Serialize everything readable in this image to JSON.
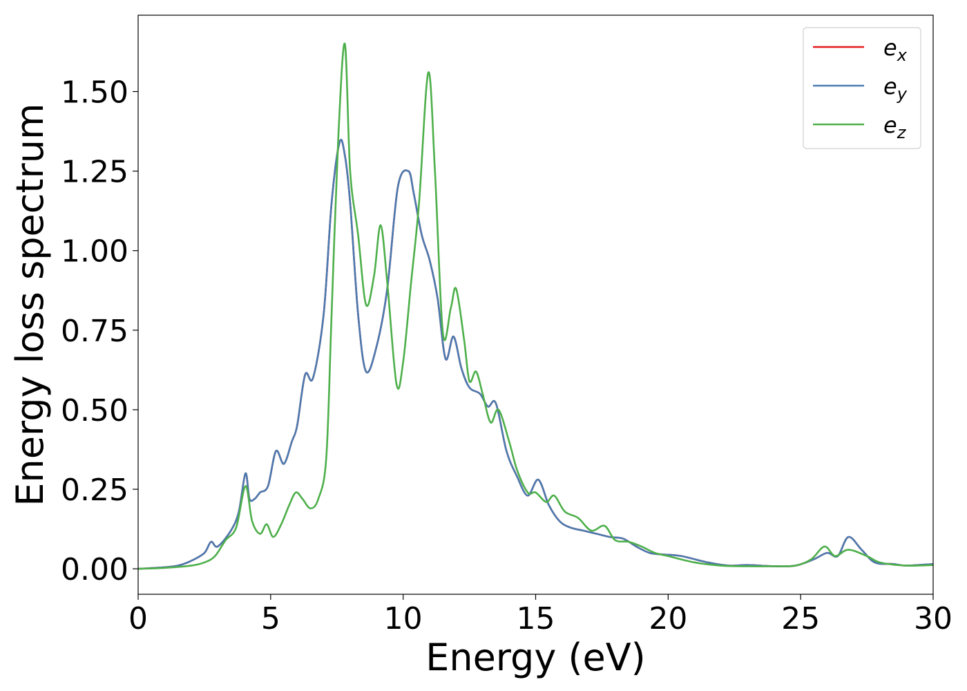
{
  "chart_data": {
    "type": "line",
    "title": "",
    "xlabel": "Energy (eV)",
    "ylabel": "Energy loss spectrum",
    "xlim": [
      0,
      30
    ],
    "ylim": [
      -0.08,
      1.74
    ],
    "xticks": [
      0,
      5,
      10,
      15,
      20,
      25,
      30
    ],
    "xtick_labels": [
      "0",
      "5",
      "10",
      "15",
      "20",
      "25",
      "30"
    ],
    "yticks": [
      0.0,
      0.25,
      0.5,
      0.75,
      1.0,
      1.25,
      1.5
    ],
    "ytick_labels": [
      "0.00",
      "0.25",
      "0.50",
      "0.75",
      "1.00",
      "1.25",
      "1.50"
    ],
    "grid": false,
    "legend_position": "top-right",
    "series": [
      {
        "name": "e",
        "subscript": "x",
        "color": "#e41a1c",
        "points": [
          [
            0,
            0.0
          ],
          [
            1,
            0.005
          ],
          [
            1.5,
            0.01
          ],
          [
            2,
            0.025
          ],
          [
            2.5,
            0.05
          ],
          [
            2.75,
            0.085
          ],
          [
            3,
            0.07
          ],
          [
            3.5,
            0.12
          ],
          [
            3.8,
            0.18
          ],
          [
            4.05,
            0.3
          ],
          [
            4.2,
            0.22
          ],
          [
            4.4,
            0.22
          ],
          [
            4.6,
            0.24
          ],
          [
            4.9,
            0.26
          ],
          [
            5.2,
            0.37
          ],
          [
            5.5,
            0.33
          ],
          [
            5.8,
            0.4
          ],
          [
            6.0,
            0.45
          ],
          [
            6.3,
            0.61
          ],
          [
            6.6,
            0.6
          ],
          [
            7.0,
            0.8
          ],
          [
            7.3,
            1.15
          ],
          [
            7.6,
            1.34
          ],
          [
            7.8,
            1.3
          ],
          [
            8.0,
            1.15
          ],
          [
            8.3,
            0.8
          ],
          [
            8.6,
            0.62
          ],
          [
            9.0,
            0.7
          ],
          [
            9.4,
            0.88
          ],
          [
            9.8,
            1.2
          ],
          [
            10.2,
            1.25
          ],
          [
            10.4,
            1.18
          ],
          [
            10.7,
            1.05
          ],
          [
            11.0,
            0.97
          ],
          [
            11.3,
            0.85
          ],
          [
            11.6,
            0.66
          ],
          [
            11.9,
            0.73
          ],
          [
            12.2,
            0.63
          ],
          [
            12.5,
            0.57
          ],
          [
            12.9,
            0.55
          ],
          [
            13.2,
            0.51
          ],
          [
            13.5,
            0.52
          ],
          [
            13.9,
            0.37
          ],
          [
            14.3,
            0.29
          ],
          [
            14.7,
            0.23
          ],
          [
            15.1,
            0.28
          ],
          [
            15.5,
            0.2
          ],
          [
            15.9,
            0.15
          ],
          [
            16.3,
            0.13
          ],
          [
            16.8,
            0.12
          ],
          [
            17.3,
            0.11
          ],
          [
            17.8,
            0.1
          ],
          [
            18.3,
            0.095
          ],
          [
            18.8,
            0.07
          ],
          [
            19.3,
            0.05
          ],
          [
            19.8,
            0.045
          ],
          [
            20.5,
            0.04
          ],
          [
            21.5,
            0.02
          ],
          [
            22.3,
            0.01
          ],
          [
            23.0,
            0.012
          ],
          [
            24.0,
            0.008
          ],
          [
            24.8,
            0.01
          ],
          [
            25.5,
            0.03
          ],
          [
            26.0,
            0.05
          ],
          [
            26.4,
            0.04
          ],
          [
            26.8,
            0.1
          ],
          [
            27.3,
            0.06
          ],
          [
            27.8,
            0.02
          ],
          [
            28.5,
            0.015
          ],
          [
            29.0,
            0.01
          ],
          [
            30.0,
            0.015
          ]
        ]
      },
      {
        "name": "e",
        "subscript": "y",
        "color": "#4a7ab0",
        "points": [
          [
            0,
            0.0
          ],
          [
            1,
            0.005
          ],
          [
            1.5,
            0.01
          ],
          [
            2,
            0.025
          ],
          [
            2.5,
            0.05
          ],
          [
            2.75,
            0.085
          ],
          [
            3,
            0.07
          ],
          [
            3.5,
            0.12
          ],
          [
            3.8,
            0.18
          ],
          [
            4.05,
            0.3
          ],
          [
            4.2,
            0.22
          ],
          [
            4.4,
            0.22
          ],
          [
            4.6,
            0.24
          ],
          [
            4.9,
            0.26
          ],
          [
            5.2,
            0.37
          ],
          [
            5.5,
            0.33
          ],
          [
            5.8,
            0.4
          ],
          [
            6.0,
            0.45
          ],
          [
            6.3,
            0.61
          ],
          [
            6.6,
            0.6
          ],
          [
            7.0,
            0.8
          ],
          [
            7.3,
            1.15
          ],
          [
            7.6,
            1.34
          ],
          [
            7.8,
            1.3
          ],
          [
            8.0,
            1.15
          ],
          [
            8.3,
            0.8
          ],
          [
            8.6,
            0.62
          ],
          [
            9.0,
            0.7
          ],
          [
            9.4,
            0.88
          ],
          [
            9.8,
            1.2
          ],
          [
            10.2,
            1.25
          ],
          [
            10.4,
            1.18
          ],
          [
            10.7,
            1.05
          ],
          [
            11.0,
            0.97
          ],
          [
            11.3,
            0.85
          ],
          [
            11.6,
            0.66
          ],
          [
            11.9,
            0.73
          ],
          [
            12.2,
            0.63
          ],
          [
            12.5,
            0.57
          ],
          [
            12.9,
            0.55
          ],
          [
            13.2,
            0.51
          ],
          [
            13.5,
            0.52
          ],
          [
            13.9,
            0.37
          ],
          [
            14.3,
            0.29
          ],
          [
            14.7,
            0.23
          ],
          [
            15.1,
            0.28
          ],
          [
            15.5,
            0.2
          ],
          [
            15.9,
            0.15
          ],
          [
            16.3,
            0.13
          ],
          [
            16.8,
            0.12
          ],
          [
            17.3,
            0.11
          ],
          [
            17.8,
            0.1
          ],
          [
            18.3,
            0.095
          ],
          [
            18.8,
            0.07
          ],
          [
            19.3,
            0.05
          ],
          [
            19.8,
            0.045
          ],
          [
            20.5,
            0.04
          ],
          [
            21.5,
            0.02
          ],
          [
            22.3,
            0.01
          ],
          [
            23.0,
            0.012
          ],
          [
            24.0,
            0.008
          ],
          [
            24.8,
            0.01
          ],
          [
            25.5,
            0.03
          ],
          [
            26.0,
            0.05
          ],
          [
            26.4,
            0.04
          ],
          [
            26.8,
            0.1
          ],
          [
            27.3,
            0.06
          ],
          [
            27.8,
            0.02
          ],
          [
            28.5,
            0.015
          ],
          [
            29.0,
            0.01
          ],
          [
            30.0,
            0.015
          ]
        ]
      },
      {
        "name": "e",
        "subscript": "z",
        "color": "#4daf4a",
        "points": [
          [
            0,
            0.0
          ],
          [
            1,
            0.003
          ],
          [
            2,
            0.01
          ],
          [
            2.5,
            0.02
          ],
          [
            2.9,
            0.04
          ],
          [
            3.3,
            0.09
          ],
          [
            3.7,
            0.13
          ],
          [
            4.05,
            0.26
          ],
          [
            4.3,
            0.15
          ],
          [
            4.6,
            0.11
          ],
          [
            4.85,
            0.14
          ],
          [
            5.1,
            0.1
          ],
          [
            5.4,
            0.14
          ],
          [
            5.7,
            0.2
          ],
          [
            5.95,
            0.24
          ],
          [
            6.2,
            0.22
          ],
          [
            6.5,
            0.19
          ],
          [
            6.8,
            0.22
          ],
          [
            7.1,
            0.35
          ],
          [
            7.3,
            0.8
          ],
          [
            7.55,
            1.35
          ],
          [
            7.8,
            1.65
          ],
          [
            8.0,
            1.25
          ],
          [
            8.3,
            1.05
          ],
          [
            8.6,
            0.83
          ],
          [
            8.9,
            0.92
          ],
          [
            9.15,
            1.08
          ],
          [
            9.4,
            0.9
          ],
          [
            9.75,
            0.58
          ],
          [
            10.0,
            0.65
          ],
          [
            10.3,
            0.9
          ],
          [
            10.6,
            1.15
          ],
          [
            10.95,
            1.56
          ],
          [
            11.2,
            1.25
          ],
          [
            11.5,
            0.74
          ],
          [
            11.8,
            0.82
          ],
          [
            12.0,
            0.88
          ],
          [
            12.3,
            0.72
          ],
          [
            12.5,
            0.59
          ],
          [
            12.75,
            0.62
          ],
          [
            13.0,
            0.55
          ],
          [
            13.3,
            0.46
          ],
          [
            13.6,
            0.5
          ],
          [
            14.0,
            0.4
          ],
          [
            14.3,
            0.31
          ],
          [
            14.7,
            0.24
          ],
          [
            15.0,
            0.24
          ],
          [
            15.4,
            0.21
          ],
          [
            15.7,
            0.23
          ],
          [
            16.1,
            0.18
          ],
          [
            16.6,
            0.16
          ],
          [
            17.1,
            0.12
          ],
          [
            17.6,
            0.135
          ],
          [
            18.0,
            0.09
          ],
          [
            18.5,
            0.085
          ],
          [
            19.0,
            0.07
          ],
          [
            19.5,
            0.05
          ],
          [
            20.0,
            0.04
          ],
          [
            21.0,
            0.02
          ],
          [
            22.0,
            0.01
          ],
          [
            23.0,
            0.008
          ],
          [
            24.0,
            0.008
          ],
          [
            24.8,
            0.01
          ],
          [
            25.4,
            0.03
          ],
          [
            25.9,
            0.07
          ],
          [
            26.3,
            0.04
          ],
          [
            26.8,
            0.06
          ],
          [
            27.5,
            0.04
          ],
          [
            28.0,
            0.02
          ],
          [
            29.0,
            0.01
          ],
          [
            30.0,
            0.012
          ]
        ]
      }
    ]
  }
}
